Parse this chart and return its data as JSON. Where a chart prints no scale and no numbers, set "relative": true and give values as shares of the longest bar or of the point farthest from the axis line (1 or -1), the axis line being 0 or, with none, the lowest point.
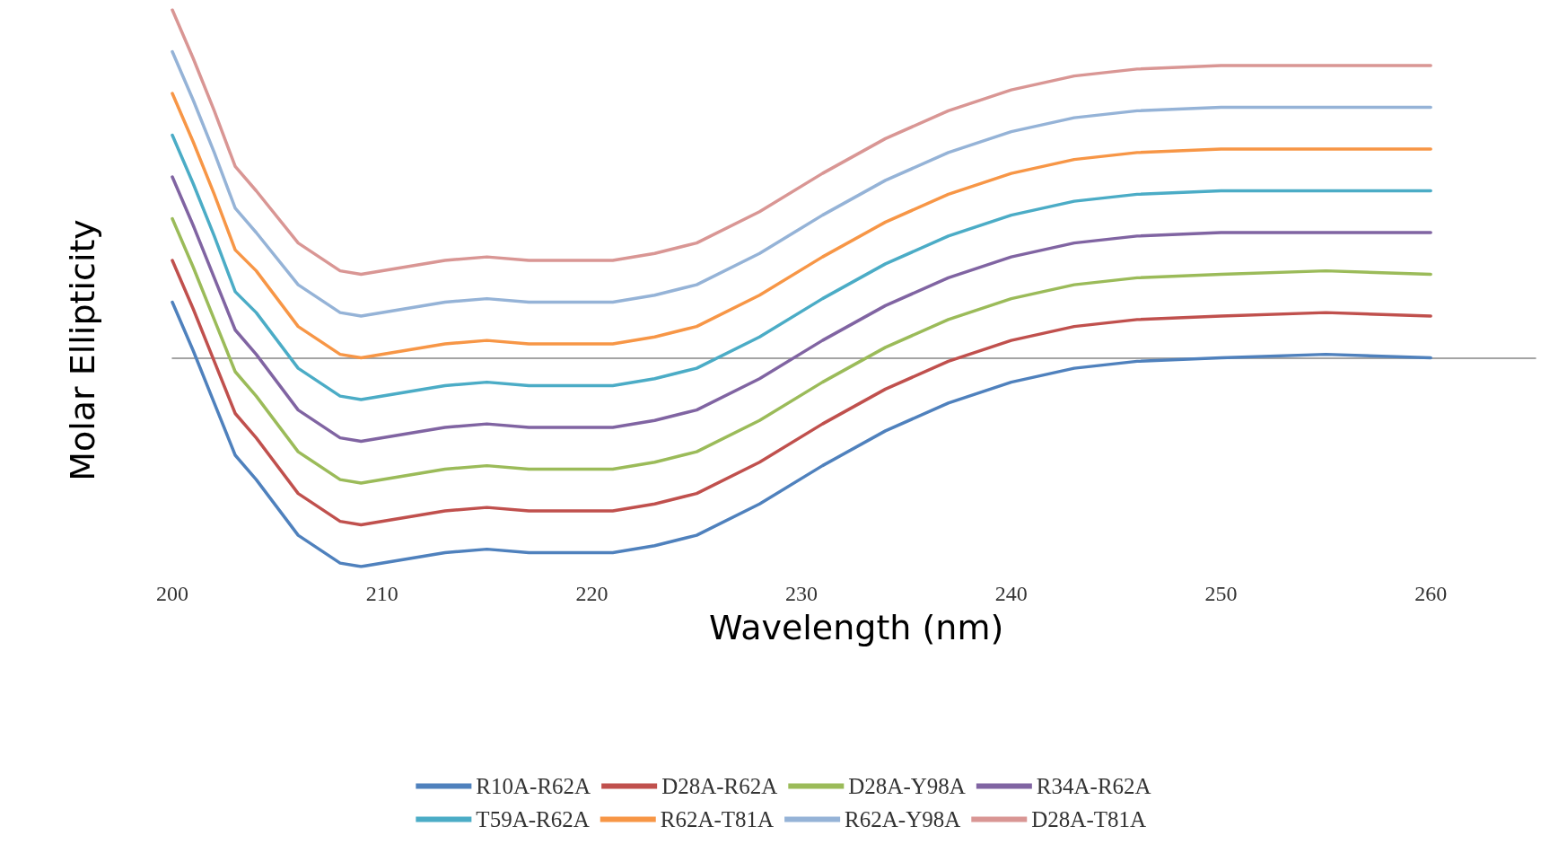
{
  "chart_data": {
    "type": "line",
    "relative": true,
    "xlabel": "Wavelength (nm)",
    "ylabel": "Molar Ellipticity",
    "x": [
      200,
      201,
      202,
      203,
      204,
      206,
      208,
      209,
      211,
      213,
      215,
      217,
      219,
      221,
      223,
      225,
      228,
      231,
      234,
      237,
      240,
      243,
      246,
      250,
      255,
      260
    ],
    "xlim": [
      200,
      265
    ],
    "xticks": [
      200,
      210,
      220,
      230,
      240,
      250,
      260
    ],
    "grid": false,
    "legend": "bottom",
    "marker": "none",
    "line_style": "solid",
    "series": [
      {
        "name": "R10A-R62A",
        "color": "#4f81bd",
        "values": [
          0.16,
          0.02,
          -0.13,
          -0.28,
          -0.35,
          -0.51,
          -0.59,
          -0.6,
          -0.58,
          -0.56,
          -0.55,
          -0.56,
          -0.56,
          -0.56,
          -0.54,
          -0.51,
          -0.42,
          -0.31,
          -0.21,
          -0.13,
          -0.07,
          -0.03,
          -0.01,
          0.0,
          0.01,
          0.0
        ]
      },
      {
        "name": "D28A-R62A",
        "color": "#c0504d",
        "values": [
          0.28,
          0.14,
          -0.01,
          -0.16,
          -0.23,
          -0.39,
          -0.47,
          -0.48,
          -0.46,
          -0.44,
          -0.43,
          -0.44,
          -0.44,
          -0.44,
          -0.42,
          -0.39,
          -0.3,
          -0.19,
          -0.09,
          -0.01,
          0.05,
          0.09,
          0.11,
          0.12,
          0.13,
          0.12
        ]
      },
      {
        "name": "D28A-Y98A",
        "color": "#9bbb59",
        "values": [
          0.4,
          0.26,
          0.11,
          -0.04,
          -0.11,
          -0.27,
          -0.35,
          -0.36,
          -0.34,
          -0.32,
          -0.31,
          -0.32,
          -0.32,
          -0.32,
          -0.3,
          -0.27,
          -0.18,
          -0.07,
          0.03,
          0.11,
          0.17,
          0.21,
          0.23,
          0.24,
          0.25,
          0.24
        ]
      },
      {
        "name": "R34A-R62A",
        "color": "#8064a2",
        "values": [
          0.52,
          0.38,
          0.23,
          0.08,
          0.01,
          -0.15,
          -0.23,
          -0.24,
          -0.22,
          -0.2,
          -0.19,
          -0.2,
          -0.2,
          -0.2,
          -0.18,
          -0.15,
          -0.06,
          0.05,
          0.15,
          0.23,
          0.29,
          0.33,
          0.35,
          0.36,
          0.36,
          0.36
        ]
      },
      {
        "name": "T59A-R62A",
        "color": "#4bacc6",
        "values": [
          0.64,
          0.5,
          0.35,
          0.19,
          0.13,
          -0.03,
          -0.11,
          -0.12,
          -0.1,
          -0.08,
          -0.07,
          -0.08,
          -0.08,
          -0.08,
          -0.06,
          -0.03,
          0.06,
          0.17,
          0.27,
          0.35,
          0.41,
          0.45,
          0.47,
          0.48,
          0.48,
          0.48
        ]
      },
      {
        "name": "R62A-T81A",
        "color": "#f79646",
        "values": [
          0.76,
          0.62,
          0.47,
          0.31,
          0.25,
          0.09,
          0.01,
          0.0,
          0.02,
          0.04,
          0.05,
          0.04,
          0.04,
          0.04,
          0.06,
          0.09,
          0.18,
          0.29,
          0.39,
          0.47,
          0.53,
          0.57,
          0.59,
          0.6,
          0.6,
          0.6
        ]
      },
      {
        "name": "R62A-Y98A",
        "color": "#95b3d7",
        "values": [
          0.88,
          0.74,
          0.59,
          0.43,
          0.36,
          0.21,
          0.13,
          0.12,
          0.14,
          0.16,
          0.17,
          0.16,
          0.16,
          0.16,
          0.18,
          0.21,
          0.3,
          0.41,
          0.51,
          0.59,
          0.65,
          0.69,
          0.71,
          0.72,
          0.72,
          0.72
        ]
      },
      {
        "name": "D28A-T81A",
        "color": "#d99694",
        "values": [
          1.0,
          0.86,
          0.71,
          0.55,
          0.48,
          0.33,
          0.25,
          0.24,
          0.26,
          0.28,
          0.29,
          0.28,
          0.28,
          0.28,
          0.3,
          0.33,
          0.42,
          0.53,
          0.63,
          0.71,
          0.77,
          0.81,
          0.83,
          0.84,
          0.84,
          0.84
        ]
      }
    ]
  }
}
